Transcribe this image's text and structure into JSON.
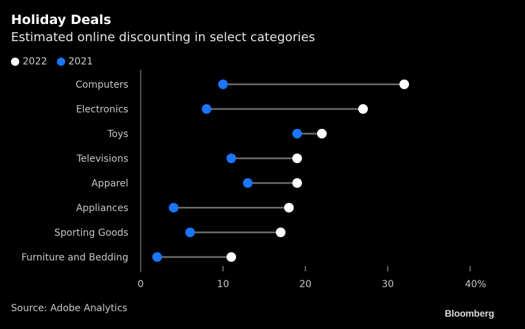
{
  "chart_data": {
    "type": "dumbbell",
    "title": "Holiday Deals",
    "subtitle": "Estimated online discounting in select categories",
    "xlabel": "",
    "ylabel": "",
    "xlim": [
      0,
      40
    ],
    "x_ticks": [
      "0",
      "10",
      "20",
      "30",
      "40%"
    ],
    "x_tick_values": [
      0,
      10,
      20,
      30,
      40
    ],
    "categories": [
      "Computers",
      "Electronics",
      "Toys",
      "Televisions",
      "Apparel",
      "Appliances",
      "Sporting Goods",
      "Furniture and Bedding"
    ],
    "series": [
      {
        "name": "2022",
        "color": "#ffffff",
        "values": [
          32,
          27,
          22,
          19,
          19,
          18,
          17,
          11
        ]
      },
      {
        "name": "2021",
        "color": "#1a75ff",
        "values": [
          10,
          8,
          19,
          11,
          13,
          4,
          6,
          2
        ]
      }
    ],
    "legend_position": "top-left",
    "grid": false
  },
  "footer": {
    "source": "Source: Adobe Analytics",
    "brand": "Bloomberg"
  },
  "colors": {
    "background": "#000000",
    "connector": "#6e6e6e",
    "axis": "#6e6e6e"
  }
}
